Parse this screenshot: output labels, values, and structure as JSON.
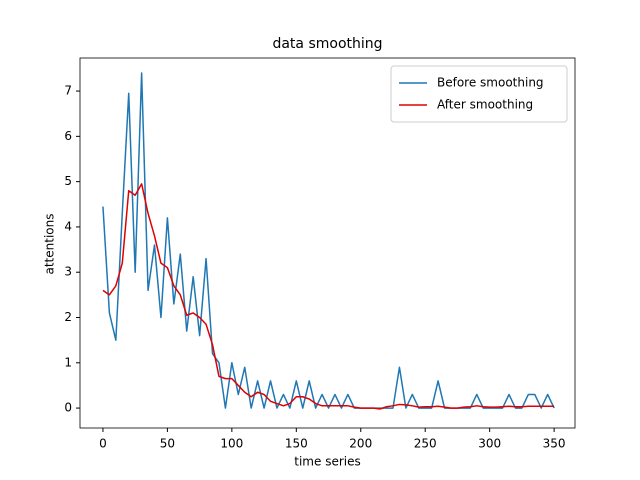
{
  "chart_data": {
    "type": "line",
    "title": "data smoothing",
    "xlabel": "time series",
    "ylabel": "attentions",
    "x": [
      0,
      5,
      10,
      15,
      20,
      25,
      30,
      35,
      40,
      45,
      50,
      55,
      60,
      65,
      70,
      75,
      80,
      85,
      90,
      95,
      100,
      105,
      110,
      115,
      120,
      125,
      130,
      135,
      140,
      145,
      150,
      155,
      160,
      165,
      170,
      175,
      180,
      185,
      190,
      195,
      200,
      205,
      210,
      215,
      220,
      225,
      230,
      235,
      240,
      245,
      250,
      255,
      260,
      265,
      270,
      275,
      280,
      285,
      290,
      295,
      300,
      305,
      310,
      315,
      320,
      325,
      330,
      335,
      340,
      345,
      350
    ],
    "series": [
      {
        "name": "Before smoothing",
        "color": "#1f77b4",
        "values": [
          4.45,
          2.1,
          1.5,
          4.3,
          6.95,
          3.0,
          7.4,
          2.6,
          3.6,
          2.0,
          4.2,
          2.3,
          3.4,
          1.7,
          2.9,
          1.6,
          3.3,
          1.2,
          1.0,
          0.0,
          1.0,
          0.3,
          0.9,
          0.0,
          0.6,
          0.0,
          0.6,
          0.0,
          0.3,
          0.0,
          0.6,
          0.0,
          0.6,
          0.0,
          0.3,
          0.0,
          0.3,
          0.0,
          0.3,
          0.0,
          0.0,
          0.0,
          0.0,
          0.0,
          0.0,
          0.0,
          0.9,
          0.0,
          0.3,
          0.0,
          0.0,
          0.0,
          0.6,
          0.0,
          0.0,
          0.0,
          0.0,
          0.0,
          0.3,
          0.0,
          0.0,
          0.0,
          0.0,
          0.3,
          0.0,
          0.0,
          0.3,
          0.3,
          0.0,
          0.3,
          0.0
        ]
      },
      {
        "name": "After smoothing",
        "color": "#e00000",
        "values": [
          2.6,
          2.5,
          2.7,
          3.2,
          4.8,
          4.7,
          4.95,
          4.3,
          3.8,
          3.2,
          3.1,
          2.7,
          2.5,
          2.05,
          2.1,
          2.0,
          1.85,
          1.4,
          0.7,
          0.65,
          0.65,
          0.5,
          0.35,
          0.25,
          0.35,
          0.3,
          0.15,
          0.1,
          0.05,
          0.1,
          0.25,
          0.25,
          0.2,
          0.1,
          0.05,
          0.05,
          0.05,
          0.05,
          0.05,
          0.02,
          0.0,
          0.0,
          0.0,
          -0.02,
          0.03,
          0.05,
          0.08,
          0.07,
          0.05,
          0.02,
          0.03,
          0.03,
          0.04,
          0.02,
          0.0,
          0.0,
          0.02,
          0.03,
          0.05,
          0.03,
          0.02,
          0.02,
          0.03,
          0.04,
          0.03,
          0.03,
          0.04,
          0.04,
          0.04,
          0.04,
          0.04
        ]
      }
    ],
    "xlim": [
      -17.8,
      366.2
    ],
    "ylim": [
      -0.44,
      7.73
    ],
    "xticks": [
      0,
      50,
      100,
      150,
      200,
      250,
      300,
      350
    ],
    "yticks": [
      0,
      1,
      2,
      3,
      4,
      5,
      6,
      7
    ],
    "legend": "upper right"
  }
}
